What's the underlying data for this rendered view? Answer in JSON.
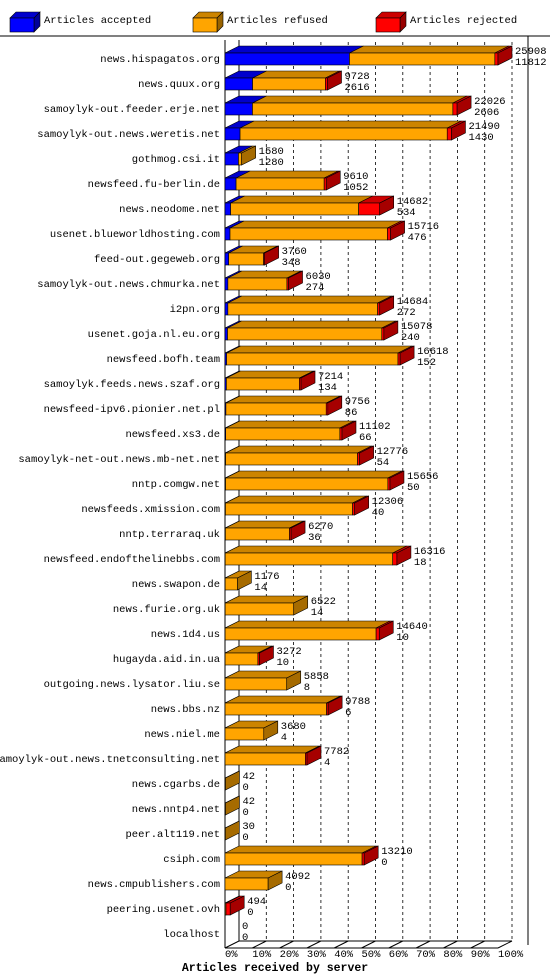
{
  "chart_data": {
    "type": "stacked-bar-3d",
    "x_label": "Articles received by server",
    "legend": "top",
    "categories": [
      "news.hispagatos.org",
      "news.quux.org",
      "samoylyk-out.feeder.erje.net",
      "samoylyk-out.news.weretis.net",
      "gothmog.csi.it",
      "newsfeed.fu-berlin.de",
      "news.neodome.net",
      "usenet.blueworldhosting.com",
      "feed-out.gegeweb.org",
      "samoylyk-out.news.chmurka.net",
      "i2pn.org",
      "usenet.goja.nl.eu.org",
      "newsfeed.bofh.team",
      "samoylyk.feeds.news.szaf.org",
      "newsfeed-ipv6.pionier.net.pl",
      "newsfeed.xs3.de",
      "samoylyk-net-out.news.mb-net.net",
      "nntp.comgw.net",
      "newsfeeds.xmission.com",
      "nntp.terraraq.uk",
      "newsfeed.endofthelinebbs.com",
      "news.swapon.de",
      "news.furie.org.uk",
      "news.1d4.us",
      "hugayda.aid.in.ua",
      "outgoing.news.lysator.liu.se",
      "news.bbs.nz",
      "news.niel.me",
      "samoylyk-out.news.tnetconsulting.net",
      "news.cgarbs.de",
      "news.nntp4.net",
      "peer.alt119.net",
      "csiph.com",
      "news.cmpublishers.com",
      "peering.usenet.ovh",
      "localhost"
    ],
    "totals": [
      25908,
      9728,
      22026,
      21490,
      1580,
      9610,
      14682,
      15716,
      3760,
      6030,
      14684,
      15078,
      16618,
      7214,
      9756,
      11102,
      12776,
      15656,
      12306,
      6270,
      16316,
      1176,
      6522,
      14640,
      3272,
      5858,
      9788,
      3680,
      7782,
      42,
      42,
      30,
      13210,
      4092,
      494,
      0
    ],
    "series": [
      {
        "name": "Articles accepted",
        "color": "#0000ff",
        "values": [
          11812,
          2616,
          2606,
          1430,
          1280,
          1052,
          534,
          476,
          348,
          274,
          272,
          240,
          152,
          134,
          86,
          66,
          54,
          50,
          40,
          36,
          18,
          14,
          14,
          10,
          10,
          8,
          6,
          4,
          4,
          0,
          0,
          0,
          0,
          0,
          0,
          0
        ]
      },
      {
        "name": "Articles refused",
        "color": "#ffa500",
        "values": [
          13796,
          6912,
          19020,
          19660,
          300,
          8358,
          12148,
          14940,
          3312,
          5606,
          14212,
          14638,
          16266,
          6930,
          9520,
          10836,
          12522,
          15406,
          12066,
          6084,
          15898,
          1162,
          6508,
          14330,
          3112,
          5850,
          9632,
          3676,
          7628,
          42,
          42,
          30,
          13010,
          4092,
          94,
          0
        ]
      },
      {
        "name": "Articles rejected",
        "color": "#ff0000",
        "values": [
          300,
          200,
          400,
          400,
          0,
          200,
          2000,
          300,
          100,
          150,
          200,
          200,
          200,
          150,
          150,
          200,
          200,
          200,
          200,
          150,
          400,
          0,
          0,
          300,
          150,
          0,
          150,
          0,
          150,
          0,
          0,
          0,
          200,
          0,
          400,
          0
        ]
      }
    ],
    "xlim": [
      0,
      25908
    ],
    "xticks": [
      {
        "value": 0,
        "label": "0%"
      },
      {
        "value": 2590.8,
        "label": "10%"
      },
      {
        "value": 5181.6,
        "label": "20%"
      },
      {
        "value": 7772.4,
        "label": "30%"
      },
      {
        "value": 10363.2,
        "label": "40%"
      },
      {
        "value": 12954,
        "label": "50%"
      },
      {
        "value": 15544.8,
        "label": "60%"
      },
      {
        "value": 18135.6,
        "label": "70%"
      },
      {
        "value": 20726.4,
        "label": "80%"
      },
      {
        "value": 23317.2,
        "label": "90%"
      },
      {
        "value": 25908,
        "label": "100%"
      }
    ],
    "grid": true
  }
}
